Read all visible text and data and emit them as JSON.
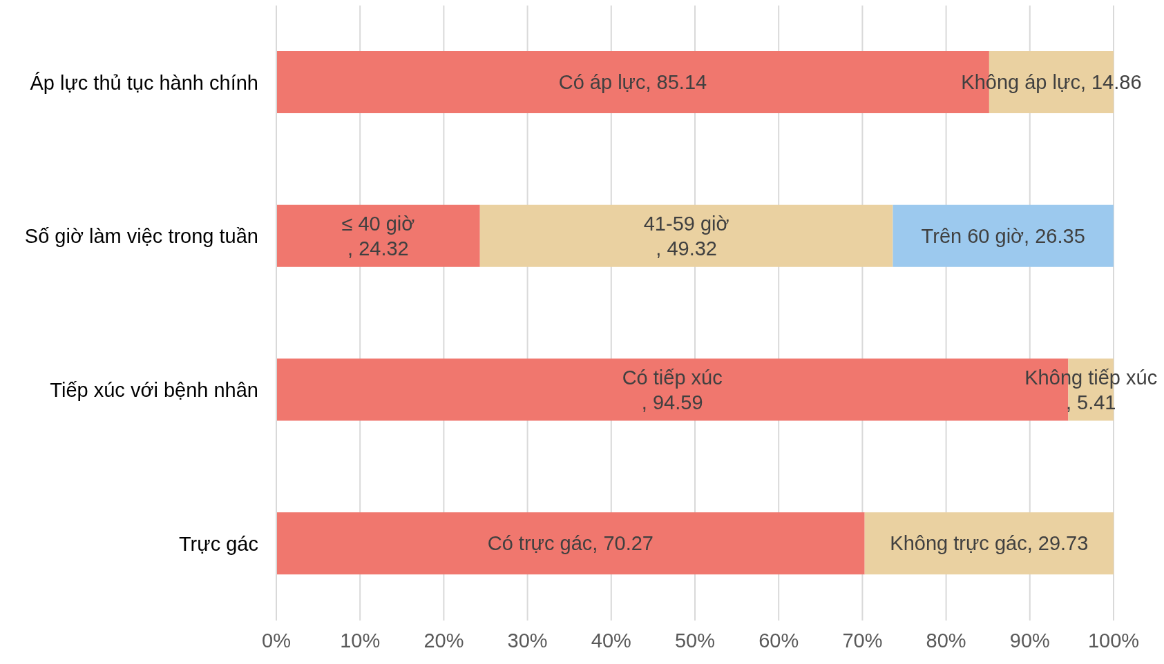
{
  "chart_data": {
    "type": "bar",
    "orientation": "horizontal",
    "stacked": true,
    "grid": "x",
    "categories": [
      "Áp lực thủ tục hành chính",
      "Số giờ làm việc trong tuần",
      "Tiếp xúc với bệnh nhân",
      "Trực gác"
    ],
    "series": [
      {
        "color": "#f0776e",
        "values": [
          85.14,
          24.32,
          94.59,
          70.27
        ],
        "value_labels": [
          "Có áp lực, 85.14",
          "≤ 40 giờ\n, 24.32",
          "Có tiếp xúc\n, 94.59",
          "Có trực gác, 70.27"
        ]
      },
      {
        "color": "#ead1a1",
        "values": [
          14.86,
          49.32,
          5.41,
          29.73
        ],
        "value_labels": [
          "Không áp lực, 14.86",
          "41-59 giờ\n, 49.32",
          "Không tiếp xúc\n, 5.41",
          "Không trực gác, 29.73"
        ]
      },
      {
        "color": "#9cc9ee",
        "values": [
          null,
          26.35,
          null,
          null
        ],
        "value_labels": [
          null,
          "Trên 60 giờ, 26.35",
          null,
          null
        ]
      }
    ],
    "xlim": [
      0,
      100
    ],
    "xticks": [
      {
        "value": 0,
        "label": "0%"
      },
      {
        "value": 10,
        "label": "10%"
      },
      {
        "value": 20,
        "label": "20%"
      },
      {
        "value": 30,
        "label": "30%"
      },
      {
        "value": 40,
        "label": "40%"
      },
      {
        "value": 50,
        "label": "50%"
      },
      {
        "value": 60,
        "label": "60%"
      },
      {
        "value": 70,
        "label": "70%"
      },
      {
        "value": 80,
        "label": "80%"
      },
      {
        "value": 90,
        "label": "90%"
      },
      {
        "value": 100,
        "label": "100%"
      }
    ]
  }
}
